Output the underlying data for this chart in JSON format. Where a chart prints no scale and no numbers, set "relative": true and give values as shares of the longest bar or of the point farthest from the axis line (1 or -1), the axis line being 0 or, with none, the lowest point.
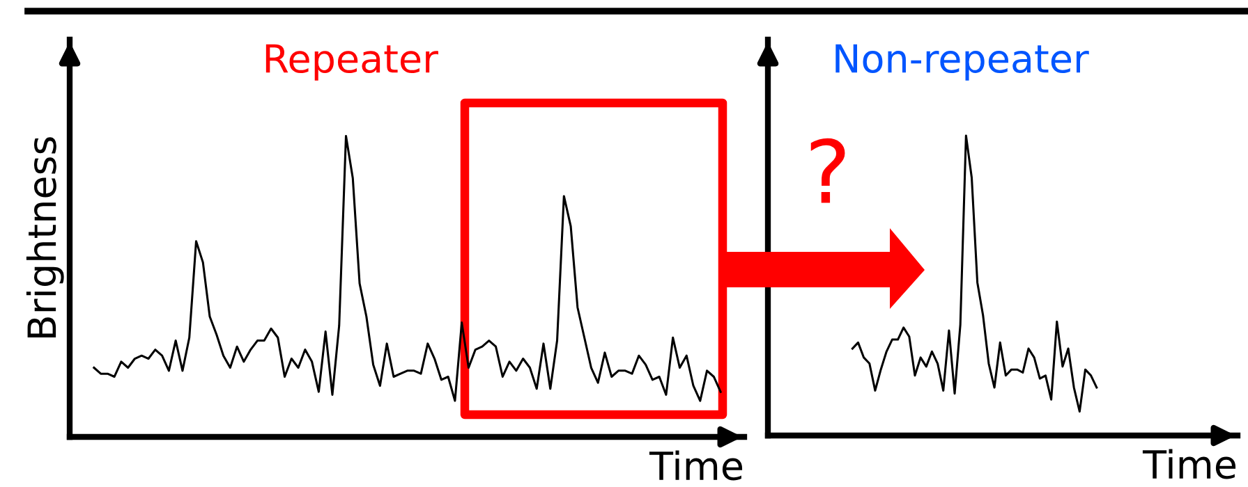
{
  "chart_data": [
    {
      "type": "line",
      "relative": true,
      "title": "Repeater",
      "xlabel": "Time",
      "ylabel": "Brightness",
      "tick_labels": false,
      "grid": false,
      "legend": false,
      "categories": [
        null,
        null,
        null,
        null,
        null,
        null,
        null,
        null,
        null,
        null,
        null,
        null,
        null,
        null,
        null,
        null,
        null,
        null,
        null,
        null,
        null,
        null,
        null,
        null,
        null,
        null,
        null,
        null,
        null,
        null,
        null,
        null,
        null,
        null,
        null,
        null,
        null,
        null,
        null,
        null,
        null,
        null,
        null,
        null,
        null,
        null,
        null,
        null,
        null,
        null,
        null,
        null,
        null,
        null,
        null,
        null,
        null,
        null,
        null,
        null,
        null,
        null,
        null,
        null,
        null,
        null,
        null,
        null,
        null,
        null,
        null,
        null,
        null,
        null,
        null,
        null,
        null,
        null,
        null,
        null,
        null,
        null,
        null,
        null,
        null,
        null,
        null,
        null,
        null,
        null,
        null,
        null,
        null
      ],
      "series": [
        {
          "color": "#000000",
          "values": [
            0.23,
            0.21,
            0.21,
            0.2,
            0.25,
            0.23,
            0.26,
            0.27,
            0.26,
            0.29,
            0.27,
            0.22,
            0.32,
            0.22,
            0.33,
            0.65,
            0.58,
            0.4,
            0.34,
            0.27,
            0.23,
            0.3,
            0.25,
            0.29,
            0.32,
            0.32,
            0.36,
            0.33,
            0.2,
            0.26,
            0.23,
            0.29,
            0.25,
            0.15,
            0.35,
            0.14,
            0.37,
            1,
            0.86,
            0.51,
            0.4,
            0.24,
            0.17,
            0.31,
            0.2,
            0.21,
            0.22,
            0.22,
            0.21,
            0.31,
            0.26,
            0.19,
            0.2,
            0.12,
            0.38,
            0.23,
            0.29,
            0.3,
            0.32,
            0.3,
            0.2,
            0.25,
            0.22,
            0.26,
            0.23,
            0.16,
            0.31,
            0.16,
            0.32,
            0.8,
            0.7,
            0.43,
            0.33,
            0.23,
            0.18,
            0.28,
            0.2,
            0.22,
            0.22,
            0.21,
            0.27,
            0.24,
            0.19,
            0.2,
            0.14,
            0.33,
            0.23,
            0.27,
            0.17,
            0.12,
            0.22,
            0.2,
            0.15
          ]
        }
      ]
    },
    {
      "type": "line",
      "relative": true,
      "title": "Non-repeater",
      "xlabel": "Time",
      "tick_labels": false,
      "grid": false,
      "legend": false,
      "annotations": [
        "?"
      ],
      "categories": [
        null,
        null,
        null,
        null,
        null,
        null,
        null,
        null,
        null,
        null,
        null,
        null,
        null,
        null,
        null,
        null,
        null,
        null,
        null,
        null,
        null,
        null,
        null,
        null,
        null,
        null,
        null,
        null,
        null,
        null,
        null,
        null,
        null,
        null,
        null,
        null,
        null,
        null,
        null,
        null,
        null,
        null,
        null,
        null
      ],
      "series": [
        {
          "color": "#000000",
          "values": [
            0.29,
            0.31,
            0.26,
            0.24,
            0.15,
            0.22,
            0.28,
            0.32,
            0.32,
            0.36,
            0.33,
            0.2,
            0.26,
            0.23,
            0.28,
            0.24,
            0.15,
            0.35,
            0.14,
            0.37,
            1,
            0.86,
            0.51,
            0.4,
            0.24,
            0.16,
            0.31,
            0.2,
            0.22,
            0.22,
            0.21,
            0.29,
            0.26,
            0.19,
            0.2,
            0.12,
            0.38,
            0.23,
            0.29,
            0.16,
            0.08,
            0.22,
            0.2,
            0.16
          ]
        }
      ]
    }
  ]
}
